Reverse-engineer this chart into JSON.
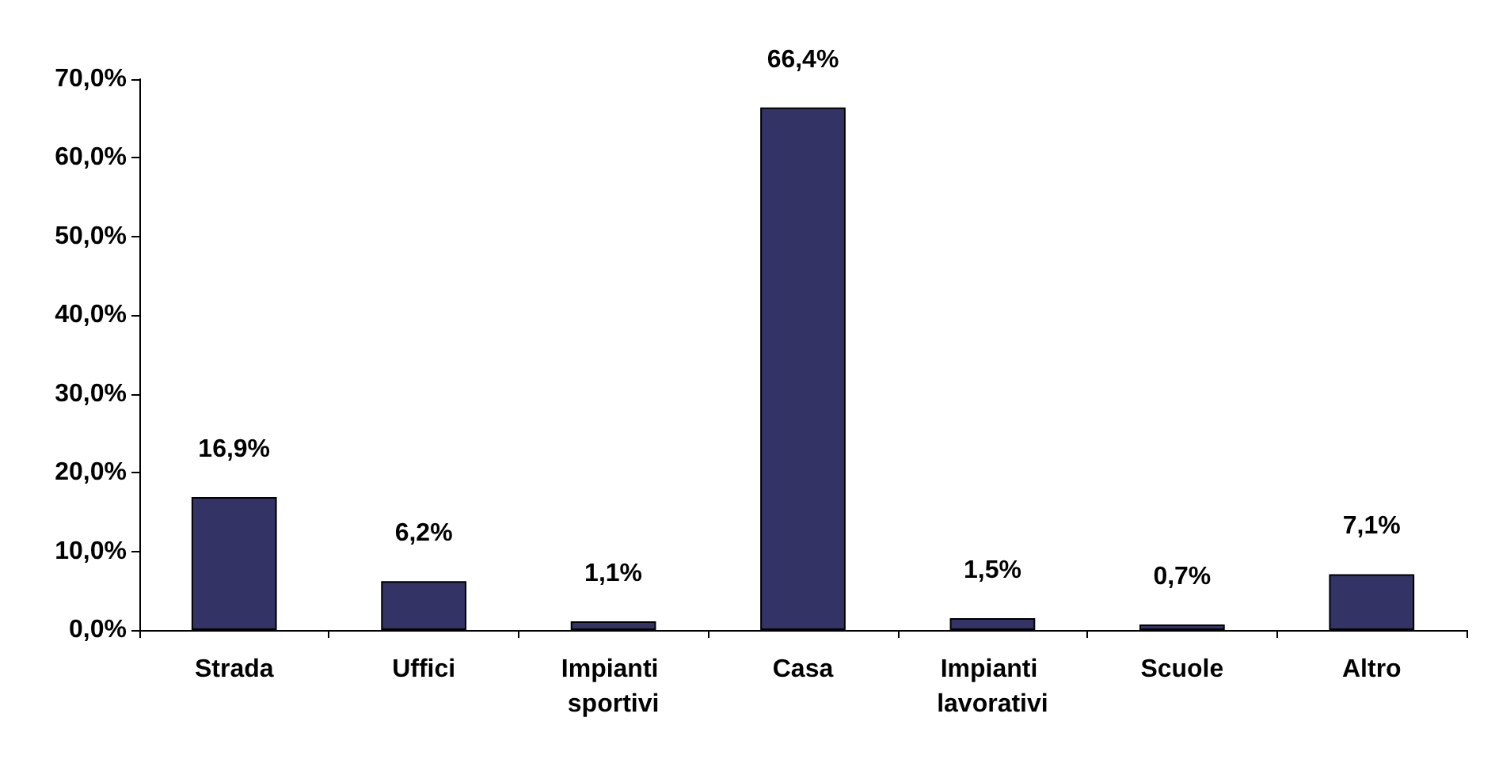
{
  "chart_data": {
    "type": "bar",
    "categories": [
      "Strada",
      "Uffici",
      "Impianti sportivi",
      "Casa",
      "Impianti lavorativi",
      "Scuole",
      "Altro"
    ],
    "values": [
      16.9,
      6.2,
      1.1,
      66.4,
      1.5,
      0.7,
      7.1
    ],
    "value_labels": [
      "16,9%",
      "6,2%",
      "1,1%",
      "66,4%",
      "1,5%",
      "0,7%",
      "7,1%"
    ],
    "color": "#333366",
    "ylim": [
      0,
      70
    ],
    "yticks": [
      {
        "value": 0,
        "label": "0,0%"
      },
      {
        "value": 10,
        "label": "10,0%"
      },
      {
        "value": 20,
        "label": "20,0%"
      },
      {
        "value": 30,
        "label": "30,0%"
      },
      {
        "value": 40,
        "label": "40,0%"
      },
      {
        "value": 50,
        "label": "50,0%"
      },
      {
        "value": 60,
        "label": "60,0%"
      },
      {
        "value": 70,
        "label": "70,0%"
      }
    ],
    "grid": false
  }
}
